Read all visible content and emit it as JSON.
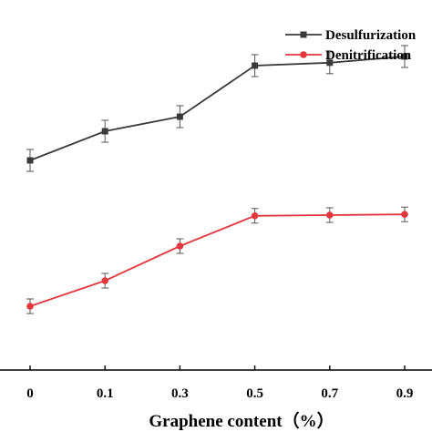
{
  "chart_data": {
    "type": "line",
    "title": "",
    "xlabel": "Graphene content（%）",
    "ylabel": "",
    "categories": [
      "0",
      "0.1",
      "0.3",
      "0.5",
      "0.7",
      "0.9"
    ],
    "ylim": [
      0,
      100
    ],
    "grid": false,
    "legend_position": "top-right",
    "series": [
      {
        "name": "Desulfurization",
        "color": "#3a3a3a",
        "marker": "square",
        "values": [
          57.5,
          65.5,
          69.5,
          83.5,
          84.3,
          86.0
        ],
        "errors": [
          3.0,
          3.0,
          3.0,
          3.0,
          3.0,
          3.0
        ]
      },
      {
        "name": "Denitrification",
        "color": "#e0383c",
        "marker": "circle",
        "values": [
          17.5,
          24.5,
          34.0,
          42.3,
          42.5,
          42.7
        ],
        "errors": [
          2.0,
          2.0,
          2.0,
          2.0,
          2.0,
          2.0
        ]
      }
    ]
  }
}
